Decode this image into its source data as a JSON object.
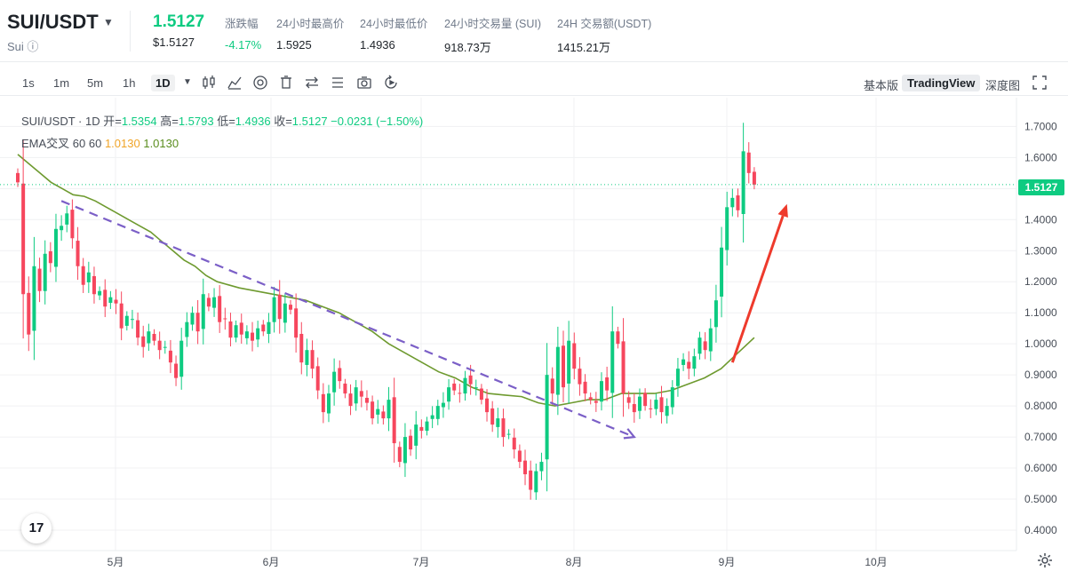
{
  "header": {
    "symbol": "SUI/USDT",
    "symbol_sub": "Sui ⓘ",
    "last_price": "1.5127",
    "last_price_usd": "$1.5127",
    "stats": [
      {
        "label": "涨跌幅",
        "value": "-4.17%",
        "color": "#0ecb81"
      },
      {
        "label": "24小时最高价",
        "value": "1.5925",
        "color": "#1e2329"
      },
      {
        "label": "24小时最低价",
        "value": "1.4936",
        "color": "#1e2329"
      },
      {
        "label": "24小时交易量 (SUI)",
        "value": "918.73万",
        "color": "#1e2329"
      },
      {
        "label": "24H 交易额(USDT)",
        "value": "1415.21万",
        "color": "#1e2329"
      }
    ]
  },
  "toolbar": {
    "timeframes": [
      "1s",
      "1m",
      "5m",
      "1h",
      "1D"
    ],
    "active_timeframe": "1D",
    "icons": [
      "candle-type-icon",
      "indicators-icon",
      "settings-icon",
      "delete-icon",
      "compare-icon",
      "list-icon",
      "screenshot-icon",
      "replay-icon"
    ],
    "right": [
      "基本版",
      "TradingView",
      "深度图"
    ],
    "active_view": "TradingView"
  },
  "legend": {
    "title": "SUI/USDT · 1D",
    "open_label": "开=",
    "open": "1.5354",
    "high_label": "高=",
    "high": "1.5793",
    "low_label": "低=",
    "low": "1.4936",
    "close_label": "收=",
    "close": "1.5127",
    "change": "−0.0231 (−1.50%)",
    "ema_label": "EMA交叉 60 60",
    "ema_val1": "1.0130",
    "ema_val2": "1.0130"
  },
  "logo_text": "17",
  "chart_data": {
    "type": "candlestick",
    "interval": "1D",
    "ylim": [
      0.37,
      1.73
    ],
    "y_ticks": [
      0.4,
      0.5,
      0.6,
      0.7,
      0.8,
      0.9,
      1.0,
      1.1,
      1.2,
      1.3,
      1.4,
      1.5,
      1.6,
      1.7
    ],
    "y_tick_labels": [
      "0.4000",
      "0.5000",
      "0.6000",
      "0.7000",
      "0.8000",
      "0.9000",
      "1.0000",
      "1.1000",
      "1.2000",
      "1.3000",
      "1.4000",
      "1.5000",
      "1.6000",
      "1.7000"
    ],
    "x_labels": [
      {
        "label": "5月",
        "date": "2024-05-01"
      },
      {
        "label": "6月",
        "date": "2024-06-01"
      },
      {
        "label": "7月",
        "date": "2024-07-01"
      },
      {
        "label": "8月",
        "date": "2024-08-01"
      },
      {
        "label": "9月",
        "date": "2024-09-01"
      },
      {
        "label": "10月",
        "date": "2024-10-01"
      }
    ],
    "last_price": 1.5127,
    "last_price_label": "1.5127",
    "colors": {
      "up": "#0ecb81",
      "down": "#f6465d",
      "ema": "#6e9a2f",
      "trend": "#7b5fc7",
      "arrow": "#ee3a2c",
      "grid": "#f0f1f3"
    },
    "closes": [
      1.52,
      1.16,
      1.03,
      1.25,
      1.17,
      1.29,
      1.26,
      1.37,
      1.38,
      1.42,
      1.34,
      1.25,
      1.19,
      1.23,
      1.16,
      1.17,
      1.12,
      1.15,
      1.13,
      1.05,
      1.09,
      1.08,
      1.02,
      0.99,
      1.04,
      1.01,
      0.98,
      0.99,
      0.94,
      0.89,
      1.01,
      1.07,
      1.1,
      1.04,
      1.16,
      1.12,
      1.15,
      1.07,
      1.08,
      1.02,
      1.06,
      1.03,
      1.04,
      1.01,
      1.05,
      1.04,
      1.07,
      1.15,
      1.08,
      1.13,
      1.11,
      1.02,
      0.94,
      0.98,
      0.92,
      0.85,
      0.78,
      0.84,
      0.91,
      0.88,
      0.84,
      0.8,
      0.86,
      0.83,
      0.81,
      0.76,
      0.79,
      0.76,
      0.82,
      0.68,
      0.62,
      0.7,
      0.66,
      0.74,
      0.72,
      0.75,
      0.77,
      0.8,
      0.81,
      0.86,
      0.85,
      0.84,
      0.89,
      0.87,
      0.86,
      0.82,
      0.78,
      0.74,
      0.76,
      0.7,
      0.71,
      0.66,
      0.62,
      0.58,
      0.53,
      0.59,
      0.62,
      0.9,
      0.84,
      0.99,
      0.86,
      1.01,
      0.92,
      0.87,
      0.84,
      0.82,
      0.81,
      0.88,
      0.85,
      1.04,
      1.0,
      0.84,
      0.81,
      0.78,
      0.83,
      0.8,
      0.79,
      0.82,
      0.78,
      0.8,
      0.86,
      0.92,
      0.95,
      0.92,
      0.96,
      1.02,
      0.98,
      1.05,
      1.14,
      1.31,
      1.44,
      1.47,
      1.43,
      1.62,
      1.55,
      1.5127
    ],
    "ema": [
      1.61,
      1.58,
      1.55,
      1.52,
      1.5,
      1.48,
      1.475,
      1.46,
      1.44,
      1.42,
      1.4,
      1.38,
      1.36,
      1.33,
      1.3,
      1.27,
      1.25,
      1.22,
      1.2,
      1.19,
      1.18,
      1.17,
      1.16,
      1.15,
      1.14,
      1.12,
      1.1,
      1.07,
      1.04,
      1.0,
      0.97,
      0.94,
      0.91,
      0.89,
      0.86,
      0.84,
      0.835,
      0.83,
      0.81,
      0.8,
      0.81,
      0.82,
      0.82,
      0.84,
      0.84,
      0.84,
      0.85,
      0.87,
      0.89,
      0.92,
      0.97,
      1.02
    ],
    "ema_x": [
      0,
      2,
      4,
      6,
      8,
      10,
      12,
      14,
      16,
      18,
      20,
      22,
      24,
      26,
      28,
      30,
      32,
      34,
      36,
      38,
      40,
      43,
      46,
      49,
      52,
      55,
      58,
      61,
      64,
      67,
      70,
      73,
      76,
      79,
      82,
      85,
      88,
      91,
      94,
      97,
      100,
      103,
      106,
      109,
      112,
      115,
      118,
      121,
      124,
      127,
      130,
      133
    ],
    "trendline": [
      {
        "i": 8,
        "price": 1.46
      },
      {
        "i": 113,
        "price": 0.7
      }
    ],
    "arrow": [
      {
        "i": 131,
        "price": 0.94
      },
      {
        "i": 141,
        "price": 1.45
      }
    ]
  }
}
